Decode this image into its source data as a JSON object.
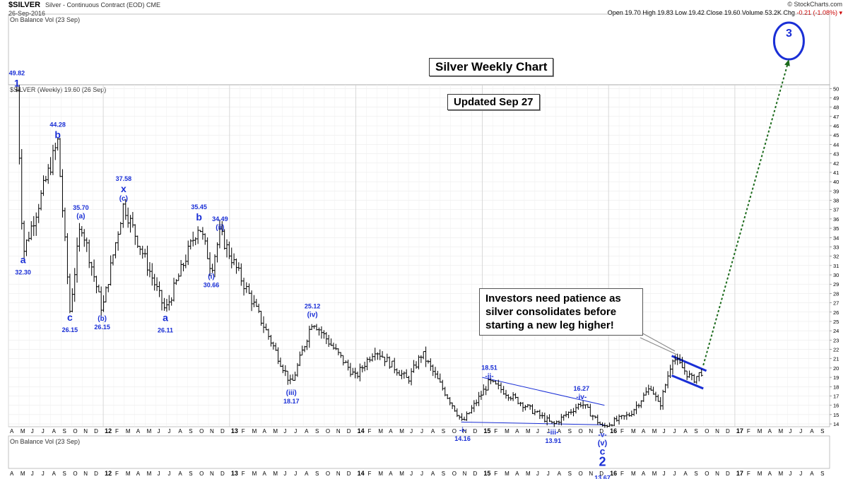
{
  "header": {
    "symbol": "$SILVER",
    "description": "Silver - Continuous Contract (EOD)  CME",
    "date": "26-Sep-2016",
    "watermark": "© StockCharts.com",
    "ohlc_text": "Open 19.70  High 19.83  Low 19.42  Close 19.60  Volume 53.2K  Chg",
    "chg_text": "-0.21 (-1.08%) ▾",
    "top_panel_label": "On Balance Vol (23 Sep)",
    "price_label": "$SILVER (Weekly) 19.60 (26 Sep)",
    "bottom_panel_label": "On Balance Vol (23 Sep)"
  },
  "boxes": {
    "title": "Silver Weekly Chart",
    "updated": "Updated Sep 27",
    "note_line1": "Investors need patience as",
    "note_line2": "silver consolidates before",
    "note_line3": "starting a new leg higher!"
  },
  "chart_data": {
    "type": "ohlc",
    "title": "Silver Weekly Chart",
    "ylim": [
      13.7,
      50.4
    ],
    "y_ticks": [
      14,
      15,
      16,
      17,
      18,
      19,
      20,
      21,
      22,
      23,
      24,
      25,
      26,
      27,
      28,
      29,
      30,
      31,
      32,
      33,
      34,
      35,
      36,
      37,
      38,
      39,
      40,
      41,
      42,
      43,
      44,
      45,
      46,
      47,
      48,
      49,
      50
    ],
    "x_months": [
      "A",
      "M",
      "J",
      "J",
      "A",
      "S",
      "O",
      "N",
      "D",
      "12",
      "F",
      "M",
      "A",
      "M",
      "J",
      "J",
      "A",
      "S",
      "O",
      "N",
      "D",
      "13",
      "F",
      "M",
      "A",
      "M",
      "J",
      "J",
      "A",
      "S",
      "O",
      "N",
      "D",
      "14",
      "F",
      "M",
      "A",
      "M",
      "J",
      "J",
      "A",
      "S",
      "O",
      "N",
      "D",
      "15",
      "F",
      "M",
      "A",
      "M",
      "J",
      "J",
      "A",
      "S",
      "O",
      "N",
      "D",
      "16",
      "F",
      "M",
      "A",
      "M",
      "J",
      "J",
      "A",
      "S",
      "O",
      "N",
      "D",
      "17",
      "F",
      "M",
      "A",
      "M",
      "J",
      "J",
      "A",
      "S"
    ],
    "x_start": "2011-04",
    "path_points": [
      {
        "date": "2011-04-25",
        "price": 49.82
      },
      {
        "date": "2011-05-13",
        "price": 32.3
      },
      {
        "date": "2011-08-22",
        "price": 44.28
      },
      {
        "date": "2011-09-26",
        "price": 26.15
      },
      {
        "date": "2011-10-28",
        "price": 35.7
      },
      {
        "date": "2011-12-29",
        "price": 26.15
      },
      {
        "date": "2012-02-28",
        "price": 37.58
      },
      {
        "date": "2012-06-28",
        "price": 26.11
      },
      {
        "date": "2012-10-04",
        "price": 35.45
      },
      {
        "date": "2012-11-09",
        "price": 30.66
      },
      {
        "date": "2012-12-04",
        "price": 34.49
      },
      {
        "date": "2013-06-27",
        "price": 18.17
      },
      {
        "date": "2013-08-28",
        "price": 25.12
      },
      {
        "date": "2013-12-31",
        "price": 19.0
      },
      {
        "date": "2014-02-24",
        "price": 22.0
      },
      {
        "date": "2014-05-30",
        "price": 18.7
      },
      {
        "date": "2014-07-10",
        "price": 21.6
      },
      {
        "date": "2014-11-05",
        "price": 14.16
      },
      {
        "date": "2015-01-22",
        "price": 18.51
      },
      {
        "date": "2015-07-24",
        "price": 13.91
      },
      {
        "date": "2015-10-14",
        "price": 16.27
      },
      {
        "date": "2015-12-14",
        "price": 13.67
      },
      {
        "date": "2016-03-01",
        "price": 15.0
      },
      {
        "date": "2016-05-02",
        "price": 18.0
      },
      {
        "date": "2016-05-27",
        "price": 15.8
      },
      {
        "date": "2016-07-04",
        "price": 21.2
      },
      {
        "date": "2016-09-01",
        "price": 18.7
      },
      {
        "date": "2016-09-26",
        "price": 19.6
      }
    ],
    "wave_labels": [
      {
        "id": "w1",
        "date": "2011-04-25",
        "price": 49.82,
        "value": "49.82",
        "wave": "1",
        "pos": "above"
      },
      {
        "id": "wa1",
        "date": "2011-05-13",
        "price": 32.3,
        "value": "32.30",
        "wave": "a",
        "pos": "below"
      },
      {
        "id": "wb1",
        "date": "2011-08-22",
        "price": 44.28,
        "value": "44.28",
        "wave": "b",
        "pos": "above"
      },
      {
        "id": "wc1",
        "date": "2011-09-26",
        "price": 26.15,
        "value": "26.15",
        "wave": "c",
        "pos": "below"
      },
      {
        "id": "wa2",
        "date": "2011-10-28",
        "price": 35.7,
        "value": "35.70",
        "wave": "(a)",
        "pos": "above"
      },
      {
        "id": "wb2",
        "date": "2011-12-29",
        "price": 26.15,
        "value": "26.15",
        "wave": "(b)",
        "pos": "below"
      },
      {
        "id": "wx",
        "date": "2012-02-28",
        "price": 37.58,
        "value": "37.58",
        "wave": "x",
        "wave2": "(c)",
        "pos": "above"
      },
      {
        "id": "wa3",
        "date": "2012-06-28",
        "price": 26.11,
        "value": "26.11",
        "wave": "a",
        "pos": "below"
      },
      {
        "id": "wb3",
        "date": "2012-10-04",
        "price": 35.45,
        "value": "35.45",
        "wave": "b",
        "pos": "above"
      },
      {
        "id": "wi",
        "date": "2012-11-09",
        "price": 30.66,
        "value": "30.66",
        "wave": "(i)",
        "pos": "below"
      },
      {
        "id": "wii",
        "date": "2012-12-04",
        "price": 34.49,
        "value": "34.49",
        "wave": "(ii)",
        "pos": "above"
      },
      {
        "id": "wiii",
        "date": "2013-06-27",
        "price": 18.17,
        "value": "18.17",
        "wave": "(iii)",
        "pos": "below"
      },
      {
        "id": "wiv",
        "date": "2013-08-28",
        "price": 25.12,
        "value": "25.12",
        "wave": "(iv)",
        "pos": "above"
      },
      {
        "id": "wsi",
        "date": "2014-11-05",
        "price": 14.16,
        "value": "14.16",
        "wave": "-i-",
        "pos": "below"
      },
      {
        "id": "wsii",
        "date": "2015-01-22",
        "price": 18.51,
        "value": "18.51",
        "wave": "-ii-",
        "pos": "above"
      },
      {
        "id": "wsiii",
        "date": "2015-07-24",
        "price": 13.91,
        "value": "13.91",
        "wave": "-iii-",
        "pos": "below"
      },
      {
        "id": "wsiv",
        "date": "2015-10-14",
        "price": 16.27,
        "value": "16.27",
        "wave": "-iv-",
        "pos": "above"
      },
      {
        "id": "w2",
        "date": "2015-12-14",
        "price": 13.67,
        "value": "13.67",
        "wave": "-v-",
        "wave2": "(v)",
        "wave3": "c",
        "wave4": "2",
        "pos": "below"
      },
      {
        "id": "w3",
        "date": "2017-06-05",
        "price": null,
        "value": "",
        "wave": "3",
        "pos": "circle"
      }
    ],
    "trendlines": [
      {
        "name": "wedge-top",
        "from": {
          "date": "2015-01-01",
          "price": 19.0
        },
        "to": {
          "date": "2015-12-20",
          "price": 16.0
        }
      },
      {
        "name": "wedge-bottom",
        "from": {
          "date": "2014-11-01",
          "price": 14.2
        },
        "to": {
          "date": "2015-12-20",
          "price": 13.9
        }
      },
      {
        "name": "flag-top",
        "from": {
          "date": "2016-07-01",
          "price": 21.3
        },
        "to": {
          "date": "2016-10-10",
          "price": 19.7
        }
      },
      {
        "name": "flag-bottom",
        "from": {
          "date": "2016-07-01",
          "price": 19.2
        },
        "to": {
          "date": "2016-10-01",
          "price": 17.8
        }
      }
    ],
    "projection": {
      "from": {
        "date": "2016-10-01",
        "price": 20.3
      },
      "to": {
        "date": "2017-06-05",
        "price": null
      }
    }
  }
}
